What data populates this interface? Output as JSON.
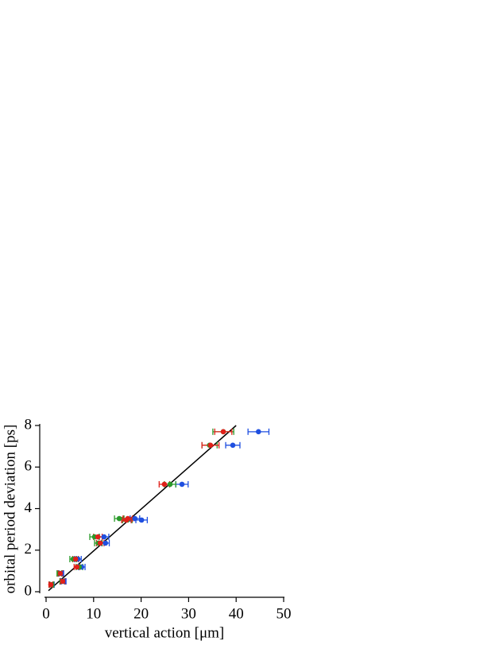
{
  "chart_data": {
    "type": "scatter",
    "xlabel": "vertical action [μm]",
    "ylabel": "orbital period deviation [ps]",
    "xlim": [
      0,
      50
    ],
    "ylim": [
      0,
      8
    ],
    "xticks": [
      0,
      10,
      20,
      30,
      40,
      50
    ],
    "yticks": [
      0,
      2,
      4,
      6,
      8
    ],
    "series": [
      {
        "color": "#1f4fe0",
        "x": [
          1.2,
          3.7,
          3.2,
          7.5,
          6.7,
          12.5,
          12.2,
          20.1,
          18.7,
          28.6,
          39.3,
          44.7
        ],
        "y": [
          0.34,
          0.5,
          0.88,
          1.19,
          1.57,
          2.34,
          2.64,
          3.45,
          3.52,
          5.17,
          7.05,
          7.7
        ],
        "xerr": [
          0.5,
          0.5,
          0.5,
          0.7,
          0.7,
          0.8,
          1.0,
          1.2,
          1.0,
          1.3,
          1.5,
          2.2
        ]
      },
      {
        "color": "#2a9a2a",
        "x": [
          1.2,
          3.4,
          2.8,
          7.0,
          5.7,
          11.0,
          10.2,
          17.1,
          15.4,
          26.1,
          34.4,
          37.3
        ],
        "y": [
          0.34,
          0.5,
          0.88,
          1.19,
          1.57,
          2.34,
          2.64,
          3.45,
          3.52,
          5.17,
          7.05,
          7.7
        ],
        "xerr": [
          0.4,
          0.5,
          0.5,
          0.7,
          0.7,
          0.8,
          1.0,
          1.0,
          1.0,
          1.2,
          1.6,
          2.2
        ]
      },
      {
        "color": "#e0201a",
        "x": [
          1.0,
          3.5,
          3.0,
          6.5,
          6.2,
          11.4,
          10.9,
          16.9,
          17.2,
          24.9,
          34.6,
          37.3
        ],
        "y": [
          0.34,
          0.5,
          0.88,
          1.19,
          1.57,
          2.34,
          2.64,
          3.45,
          3.52,
          5.17,
          7.05,
          7.7
        ],
        "xerr": [
          0.4,
          0.5,
          0.5,
          0.6,
          0.6,
          0.8,
          0.9,
          1.0,
          1.0,
          1.1,
          1.8,
          1.8
        ]
      }
    ],
    "fit": {
      "color": "#000000",
      "x": [
        0.5,
        40
      ],
      "y": [
        0.05,
        8.0
      ]
    }
  }
}
